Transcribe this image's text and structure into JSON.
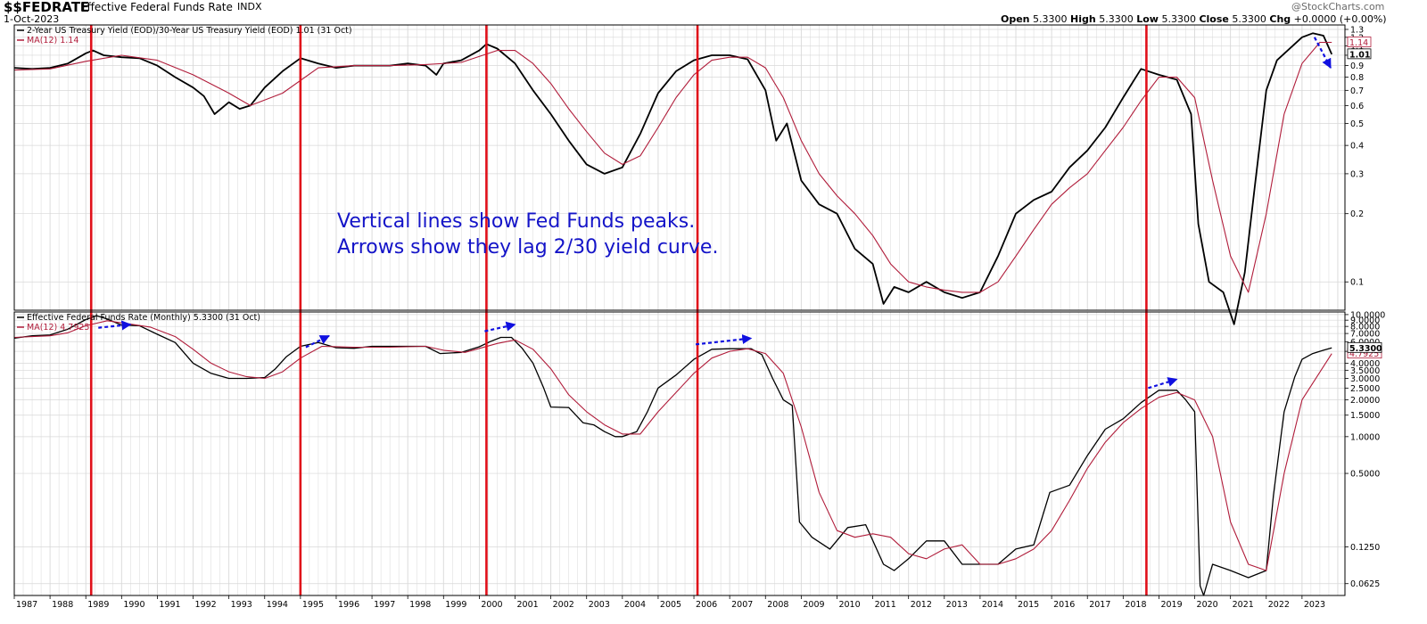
{
  "header": {
    "symbol": "$$FEDRATE",
    "name": "Effective Federal Funds Rate",
    "exchange": "INDX",
    "date": "1-Oct-2023",
    "open_label": "Open",
    "open_value": "5.3300",
    "high_label": "High",
    "high_value": "5.3300",
    "low_label": "Low",
    "low_value": "5.3300",
    "close_label": "Close",
    "close_value": "5.3300",
    "chg_label": "Chg",
    "chg_value": "+0.0000 (+0.00%)",
    "watermark": "@StockCharts.com"
  },
  "annotation": {
    "line1": "Vertical lines show Fed Funds peaks.",
    "line2": "Arrows show they lag 2/30 yield curve."
  },
  "colors": {
    "price": "#000000",
    "ma": "#b01c3a",
    "peak_line": "#e0101a",
    "arrow": "#1010e0",
    "annotation": "#1414c8",
    "grid": "#d8d8d8"
  },
  "chart_data": [
    {
      "type": "line",
      "panel": "top",
      "legend": [
        "2-Year US Treasury Yield (EOD)/30-Year US Treasury Yield (EOD) 1.01 (31 Oct)",
        "MA(12) 1.14"
      ],
      "scale": "log",
      "ylim": [
        0.075,
        1.36
      ],
      "yticks": [
        "1.3",
        "1.2",
        "1.1",
        "1.0",
        "0.9",
        "0.8",
        "0.7",
        "0.6",
        "0.5",
        "0.4",
        "0.3",
        "0.2",
        "0.1"
      ],
      "last_value_label": "1.01",
      "ma_value_label": "1.14",
      "series": [
        {
          "name": "2-Year US Treasury Yield (EOD)/30-Year US Treasury Yield (EOD)",
          "x": [
            1987.0,
            1987.5,
            1988.0,
            1988.5,
            1989.0,
            1989.2,
            1989.5,
            1990.0,
            1990.5,
            1991.0,
            1991.5,
            1992.0,
            1992.3,
            1992.6,
            1993.0,
            1993.3,
            1993.6,
            1994.0,
            1994.5,
            1995.0,
            1995.5,
            1996.0,
            1996.5,
            1997.0,
            1997.5,
            1998.0,
            1998.5,
            1998.8,
            1999.0,
            1999.5,
            2000.0,
            2000.2,
            2000.5,
            2001.0,
            2001.5,
            2002.0,
            2002.5,
            2003.0,
            2003.5,
            2004.0,
            2004.5,
            2005.0,
            2005.5,
            2006.0,
            2006.5,
            2007.0,
            2007.5,
            2008.0,
            2008.3,
            2008.6,
            2009.0,
            2009.5,
            2010.0,
            2010.5,
            2011.0,
            2011.3,
            2011.6,
            2012.0,
            2012.5,
            2013.0,
            2013.5,
            2014.0,
            2014.5,
            2015.0,
            2015.5,
            2016.0,
            2016.5,
            2017.0,
            2017.5,
            2018.0,
            2018.5,
            2019.0,
            2019.5,
            2019.9,
            2020.1,
            2020.4,
            2020.8,
            2021.1,
            2021.4,
            2021.7,
            2022.0,
            2022.3,
            2022.6,
            2023.0,
            2023.3,
            2023.6,
            2023.83
          ],
          "values": [
            0.88,
            0.87,
            0.88,
            0.92,
            1.02,
            1.05,
            1.0,
            0.98,
            0.97,
            0.9,
            0.8,
            0.72,
            0.66,
            0.55,
            0.62,
            0.58,
            0.6,
            0.72,
            0.85,
            0.97,
            0.92,
            0.88,
            0.9,
            0.9,
            0.9,
            0.92,
            0.9,
            0.82,
            0.92,
            0.95,
            1.05,
            1.12,
            1.07,
            0.92,
            0.7,
            0.55,
            0.42,
            0.33,
            0.3,
            0.32,
            0.45,
            0.68,
            0.85,
            0.95,
            1.0,
            1.0,
            0.96,
            0.7,
            0.42,
            0.5,
            0.28,
            0.22,
            0.2,
            0.14,
            0.12,
            0.08,
            0.095,
            0.09,
            0.1,
            0.09,
            0.085,
            0.09,
            0.13,
            0.2,
            0.23,
            0.25,
            0.32,
            0.38,
            0.48,
            0.65,
            0.87,
            0.82,
            0.78,
            0.55,
            0.18,
            0.1,
            0.09,
            0.065,
            0.11,
            0.28,
            0.7,
            0.95,
            1.05,
            1.2,
            1.25,
            1.22,
            1.01
          ]
        },
        {
          "name": "MA(12)",
          "x": [
            1987.0,
            1988.0,
            1989.0,
            1990.0,
            1991.0,
            1992.0,
            1993.0,
            1993.6,
            1994.5,
            1995.5,
            1996.5,
            1997.5,
            1998.5,
            1999.5,
            2000.5,
            2001.0,
            2001.5,
            2002.0,
            2002.5,
            2003.0,
            2003.5,
            2004.0,
            2004.5,
            2005.0,
            2005.5,
            2006.0,
            2006.5,
            2007.0,
            2007.5,
            2008.0,
            2008.5,
            2009.0,
            2009.5,
            2010.0,
            2010.5,
            2011.0,
            2011.5,
            2012.0,
            2012.5,
            2013.0,
            2013.5,
            2014.0,
            2014.5,
            2015.0,
            2015.5,
            2016.0,
            2016.5,
            2017.0,
            2017.5,
            2018.0,
            2018.5,
            2019.0,
            2019.5,
            2020.0,
            2020.5,
            2021.0,
            2021.5,
            2022.0,
            2022.5,
            2023.0,
            2023.5,
            2023.83
          ],
          "values": [
            0.86,
            0.87,
            0.94,
            1.0,
            0.95,
            0.82,
            0.68,
            0.6,
            0.68,
            0.88,
            0.9,
            0.9,
            0.91,
            0.93,
            1.05,
            1.05,
            0.92,
            0.75,
            0.58,
            0.46,
            0.37,
            0.33,
            0.36,
            0.48,
            0.65,
            0.82,
            0.95,
            0.98,
            0.98,
            0.88,
            0.65,
            0.42,
            0.3,
            0.24,
            0.2,
            0.16,
            0.12,
            0.1,
            0.095,
            0.092,
            0.09,
            0.09,
            0.1,
            0.13,
            0.17,
            0.22,
            0.26,
            0.3,
            0.38,
            0.48,
            0.63,
            0.8,
            0.8,
            0.65,
            0.28,
            0.13,
            0.09,
            0.2,
            0.55,
            0.92,
            1.14,
            1.14
          ]
        }
      ],
      "arrows": [
        {
          "x": [
            2023.35,
            2023.8
          ],
          "values": [
            1.2,
            0.88
          ]
        }
      ]
    },
    {
      "type": "line",
      "panel": "bottom",
      "legend": [
        "Effective Federal Funds Rate (Monthly) 5.3300 (31 Oct)",
        "MA(12) 4.7925"
      ],
      "scale": "log",
      "ylim": [
        0.05,
        10.5
      ],
      "yticks": [
        "10.0000",
        "9.0000",
        "8.0000",
        "7.0000",
        "6.0000",
        "5.0000",
        "4.0000",
        "3.5000",
        "3.0000",
        "2.5000",
        "2.0000",
        "1.5000",
        "1.0000",
        "0.5000",
        "0.1250",
        "0.0625"
      ],
      "last_value_label": "5.3300",
      "ma_value_label": "4.7925",
      "series": [
        {
          "name": "Effective Federal Funds Rate",
          "x": [
            1987.0,
            1987.5,
            1988.0,
            1988.5,
            1989.0,
            1989.3,
            1989.6,
            1990.0,
            1990.5,
            1991.0,
            1991.5,
            1992.0,
            1992.5,
            1993.0,
            1993.5,
            1994.0,
            1994.3,
            1994.6,
            1995.0,
            1995.5,
            1996.0,
            1996.5,
            1997.0,
            1997.5,
            1998.0,
            1998.5,
            1998.9,
            1999.5,
            2000.0,
            2000.3,
            2000.6,
            2000.9,
            2001.2,
            2001.5,
            2001.8,
            2002.0,
            2002.5,
            2002.9,
            2003.2,
            2003.5,
            2003.8,
            2004.0,
            2004.4,
            2004.7,
            2005.0,
            2005.5,
            2006.0,
            2006.5,
            2007.0,
            2007.6,
            2007.9,
            2008.2,
            2008.5,
            2008.75,
            2008.95,
            2009.3,
            2009.8,
            2010.3,
            2010.8,
            2011.3,
            2011.6,
            2012.0,
            2012.5,
            2013.0,
            2013.5,
            2014.0,
            2014.5,
            2015.0,
            2015.5,
            2015.95,
            2016.5,
            2017.0,
            2017.5,
            2018.0,
            2018.5,
            2019.0,
            2019.5,
            2019.75,
            2020.0,
            2020.15,
            2020.25,
            2020.5,
            2021.0,
            2021.5,
            2022.0,
            2022.2,
            2022.5,
            2022.8,
            2023.0,
            2023.3,
            2023.6,
            2023.83
          ],
          "values": [
            6.4,
            6.7,
            6.8,
            7.6,
            9.1,
            9.8,
            9.2,
            8.2,
            8.1,
            6.9,
            5.9,
            4.0,
            3.3,
            3.0,
            3.0,
            3.05,
            3.6,
            4.5,
            5.5,
            5.9,
            5.35,
            5.3,
            5.5,
            5.5,
            5.5,
            5.5,
            4.8,
            4.9,
            5.45,
            6.0,
            6.5,
            6.5,
            5.3,
            4.0,
            2.5,
            1.75,
            1.73,
            1.3,
            1.25,
            1.1,
            1.0,
            1.0,
            1.1,
            1.6,
            2.5,
            3.2,
            4.3,
            5.2,
            5.25,
            5.25,
            4.7,
            3.0,
            2.0,
            1.8,
            0.2,
            0.15,
            0.12,
            0.18,
            0.19,
            0.09,
            0.08,
            0.1,
            0.14,
            0.14,
            0.09,
            0.09,
            0.09,
            0.12,
            0.13,
            0.35,
            0.4,
            0.7,
            1.15,
            1.4,
            1.9,
            2.4,
            2.4,
            2.0,
            1.6,
            0.06,
            0.05,
            0.09,
            0.08,
            0.07,
            0.08,
            0.33,
            1.6,
            3.1,
            4.3,
            4.8,
            5.1,
            5.33
          ]
        },
        {
          "name": "MA(12)",
          "x": [
            1987.0,
            1988.0,
            1988.5,
            1989.0,
            1989.6,
            1990.2,
            1990.8,
            1991.5,
            1992.0,
            1992.5,
            1993.0,
            1993.5,
            1994.0,
            1994.5,
            1995.0,
            1995.6,
            1996.5,
            1997.5,
            1998.5,
            1999.0,
            1999.6,
            2000.5,
            2001.0,
            2001.5,
            2002.0,
            2002.5,
            2003.0,
            2003.5,
            2004.0,
            2004.5,
            2005.0,
            2005.5,
            2006.0,
            2006.5,
            2007.0,
            2007.5,
            2008.0,
            2008.5,
            2009.0,
            2009.5,
            2010.0,
            2010.5,
            2011.0,
            2011.5,
            2012.0,
            2012.5,
            2013.0,
            2013.5,
            2014.0,
            2014.5,
            2015.0,
            2015.5,
            2016.0,
            2016.5,
            2017.0,
            2017.5,
            2018.0,
            2018.5,
            2019.0,
            2019.5,
            2020.0,
            2020.5,
            2021.0,
            2021.5,
            2022.0,
            2022.5,
            2023.0,
            2023.83
          ],
          "values": [
            6.5,
            6.7,
            7.1,
            8.1,
            8.9,
            8.4,
            7.9,
            6.6,
            5.2,
            4.0,
            3.4,
            3.1,
            3.0,
            3.4,
            4.4,
            5.5,
            5.4,
            5.4,
            5.5,
            5.1,
            4.9,
            5.8,
            6.2,
            5.2,
            3.6,
            2.2,
            1.6,
            1.25,
            1.05,
            1.05,
            1.6,
            2.3,
            3.3,
            4.4,
            5.0,
            5.25,
            4.8,
            3.3,
            1.2,
            0.35,
            0.17,
            0.15,
            0.16,
            0.15,
            0.11,
            0.1,
            0.12,
            0.13,
            0.09,
            0.09,
            0.1,
            0.12,
            0.17,
            0.3,
            0.55,
            0.9,
            1.3,
            1.7,
            2.1,
            2.3,
            2.0,
            1.0,
            0.2,
            0.09,
            0.08,
            0.5,
            2.0,
            4.79
          ]
        }
      ],
      "arrows": [
        {
          "x": [
            1989.35,
            1990.25
          ],
          "values": [
            7.8,
            8.3
          ]
        },
        {
          "x": [
            1995.15,
            1995.8
          ],
          "values": [
            5.4,
            6.7
          ]
        },
        {
          "x": [
            2000.15,
            2001.0
          ],
          "values": [
            7.3,
            8.3
          ]
        },
        {
          "x": [
            2006.05,
            2007.6
          ],
          "values": [
            5.7,
            6.4
          ]
        },
        {
          "x": [
            2018.7,
            2019.5
          ],
          "values": [
            2.5,
            2.95
          ]
        }
      ]
    }
  ],
  "peak_lines_x": [
    1989.15,
    1995.0,
    2000.2,
    2006.1,
    2018.65
  ],
  "x_axis": {
    "xlim": [
      1987.0,
      2024.2
    ],
    "tick_years": [
      1987,
      1988,
      1989,
      1990,
      1991,
      1992,
      1993,
      1994,
      1995,
      1996,
      1997,
      1998,
      1999,
      2000,
      2001,
      2002,
      2003,
      2004,
      2005,
      2006,
      2007,
      2008,
      2009,
      2010,
      2011,
      2012,
      2013,
      2014,
      2015,
      2016,
      2017,
      2018,
      2019,
      2020,
      2021,
      2022,
      2023
    ],
    "tick_labels": [
      "1987",
      "1988",
      "1989",
      "1990",
      "1991",
      "1992",
      "1993",
      "1994",
      "1995",
      "1996",
      "1997",
      "1998",
      "1999",
      "2000",
      "2001",
      "2002",
      "2003",
      "2004",
      "2005",
      "2006",
      "2007",
      "2008",
      "2009",
      "2010",
      "2011",
      "2012",
      "2013",
      "2014",
      "2015",
      "2016",
      "2017",
      "2018",
      "2019",
      "2020",
      "2021",
      "2022",
      "2023"
    ]
  }
}
